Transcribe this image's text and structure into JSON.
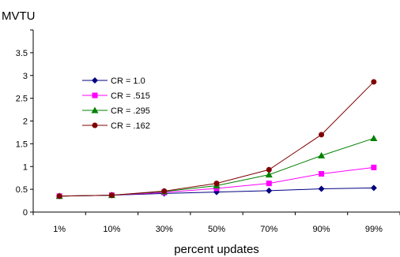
{
  "chart_data": {
    "type": "line",
    "title": "",
    "ylabel": "MVTU",
    "xlabel": "percent updates",
    "categories": [
      "1%",
      "10%",
      "30%",
      "50%",
      "70%",
      "90%",
      "99%"
    ],
    "ylim": [
      0,
      4
    ],
    "yticks": [
      "0",
      "0.5",
      "1",
      "1.5",
      "2",
      "2.5",
      "3",
      "3.5"
    ],
    "yticks_values": [
      0,
      0.5,
      1,
      1.5,
      2,
      2.5,
      3,
      3.5
    ],
    "grid": false,
    "legend_position": "top-left",
    "series": [
      {
        "name": "CR = 1.0",
        "color": "#000080",
        "marker": "diamond",
        "values": [
          0.35,
          0.37,
          0.41,
          0.44,
          0.47,
          0.51,
          0.53
        ]
      },
      {
        "name": "CR = .515",
        "color": "#ff00ff",
        "marker": "square",
        "values": [
          0.35,
          0.37,
          0.43,
          0.52,
          0.63,
          0.84,
          0.98
        ]
      },
      {
        "name": "CR = .295",
        "color": "#008000",
        "marker": "triangle",
        "values": [
          0.35,
          0.37,
          0.45,
          0.58,
          0.82,
          1.24,
          1.62
        ]
      },
      {
        "name": "CR = .162",
        "color": "#800000",
        "marker": "circle",
        "values": [
          0.35,
          0.37,
          0.46,
          0.63,
          0.93,
          1.7,
          2.86
        ]
      }
    ]
  }
}
